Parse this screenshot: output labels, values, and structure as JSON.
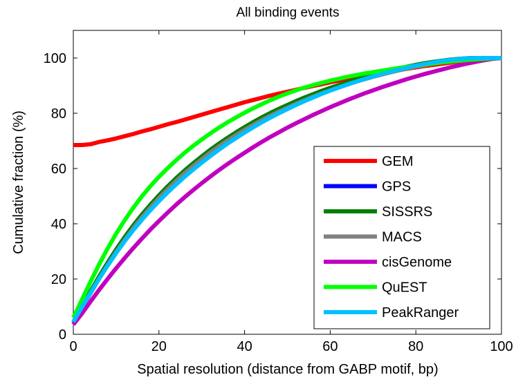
{
  "chart_data": {
    "type": "line",
    "title": "All binding events",
    "xlabel": "Spatial resolution (distance from GABP motif, bp)",
    "ylabel": "Cumulative fraction (%)",
    "xlim": [
      0,
      100
    ],
    "ylim": [
      0,
      110
    ],
    "xticks": [
      "0",
      "20",
      "40",
      "60",
      "80",
      "100"
    ],
    "yticks": [
      "0",
      "20",
      "40",
      "60",
      "80",
      "100"
    ],
    "grid": false,
    "legend_position": "bottom-right",
    "x": [
      0,
      2,
      4,
      6,
      8,
      10,
      12,
      14,
      16,
      18,
      20,
      22,
      24,
      26,
      28,
      30,
      32,
      34,
      36,
      38,
      40,
      42,
      44,
      46,
      48,
      50,
      52,
      54,
      56,
      58,
      60,
      62,
      64,
      66,
      68,
      70,
      72,
      74,
      76,
      78,
      80,
      82,
      84,
      86,
      88,
      90,
      92,
      94,
      96,
      98,
      100
    ],
    "series": [
      {
        "name": "GEM",
        "color": "#ff0000",
        "values": [
          68.5,
          68.5,
          68.8,
          69.6,
          70.2,
          70.9,
          71.7,
          72.5,
          73.4,
          74.2,
          75.1,
          76.0,
          76.8,
          77.7,
          78.6,
          79.5,
          80.4,
          81.3,
          82.2,
          83.1,
          84.0,
          84.8,
          85.6,
          86.4,
          87.1,
          87.8,
          88.5,
          89.2,
          89.9,
          90.5,
          91.2,
          91.8,
          92.4,
          93.0,
          93.6,
          94.1,
          94.6,
          95.1,
          95.6,
          96.1,
          96.6,
          97.1,
          97.5,
          97.9,
          98.3,
          98.7,
          99.0,
          99.3,
          99.6,
          99.8,
          100
        ]
      },
      {
        "name": "GPS",
        "color": "#0000ff",
        "values": [
          4.0,
          9.5,
          15.0,
          20.3,
          25.4,
          30.2,
          34.6,
          38.8,
          42.7,
          46.3,
          49.7,
          52.9,
          55.9,
          58.7,
          61.3,
          63.8,
          66.2,
          68.4,
          70.5,
          72.5,
          74.4,
          76.2,
          77.9,
          79.5,
          81.0,
          82.5,
          83.9,
          85.2,
          86.5,
          87.7,
          88.8,
          89.9,
          90.9,
          91.9,
          92.8,
          93.7,
          94.5,
          95.3,
          96.0,
          96.7,
          97.3,
          97.9,
          98.4,
          98.9,
          99.3,
          99.6,
          99.9,
          100,
          100,
          100,
          100
        ]
      },
      {
        "name": "SISSRS",
        "color": "#008000",
        "values": [
          4.5,
          10.0,
          15.5,
          20.8,
          25.9,
          30.7,
          35.2,
          39.4,
          43.3,
          46.9,
          50.3,
          53.5,
          56.5,
          59.3,
          61.9,
          64.4,
          66.8,
          69.0,
          71.1,
          73.1,
          75.0,
          76.8,
          78.5,
          80.1,
          81.6,
          83.0,
          84.4,
          85.7,
          86.9,
          88.1,
          89.2,
          90.2,
          91.2,
          92.2,
          93.1,
          93.9,
          94.7,
          95.5,
          96.2,
          96.9,
          97.5,
          98.1,
          98.6,
          99.0,
          99.4,
          99.7,
          99.9,
          100,
          100,
          100,
          100
        ]
      },
      {
        "name": "MACS",
        "color": "#808080",
        "values": [
          4.0,
          9.3,
          14.8,
          20.0,
          25.0,
          29.8,
          34.2,
          38.4,
          42.3,
          45.9,
          49.3,
          52.5,
          55.5,
          58.3,
          60.9,
          63.4,
          65.8,
          68.0,
          70.1,
          72.1,
          74.0,
          75.8,
          77.5,
          79.1,
          80.6,
          82.0,
          83.4,
          84.7,
          86.0,
          87.2,
          88.3,
          89.4,
          90.4,
          91.4,
          92.3,
          93.2,
          94.0,
          94.8,
          95.5,
          96.2,
          96.9,
          97.5,
          98.1,
          98.6,
          99.0,
          99.4,
          99.7,
          99.9,
          100,
          100,
          100
        ]
      },
      {
        "name": "cisGenome",
        "color": "#c000c0",
        "values": [
          3.5,
          7.5,
          11.8,
          16.0,
          20.0,
          23.9,
          27.6,
          31.2,
          34.6,
          37.9,
          41.0,
          44.0,
          46.9,
          49.6,
          52.2,
          54.7,
          57.1,
          59.4,
          61.6,
          63.7,
          65.7,
          67.7,
          69.6,
          71.4,
          73.1,
          74.8,
          76.4,
          77.9,
          79.4,
          80.8,
          82.2,
          83.5,
          84.8,
          86.0,
          87.2,
          88.3,
          89.4,
          90.4,
          91.4,
          92.4,
          93.3,
          94.2,
          95.0,
          95.8,
          96.6,
          97.3,
          98.0,
          98.6,
          99.2,
          99.7,
          100
        ]
      },
      {
        "name": "QuEST",
        "color": "#00ff00",
        "values": [
          6.0,
          12.5,
          19.0,
          25.2,
          31.0,
          36.4,
          41.3,
          45.8,
          49.9,
          53.6,
          57.0,
          60.1,
          63.0,
          65.7,
          68.2,
          70.5,
          72.7,
          74.8,
          76.7,
          78.5,
          80.2,
          81.8,
          83.3,
          84.7,
          86.0,
          87.2,
          88.3,
          89.3,
          90.2,
          91.0,
          91.8,
          92.5,
          93.2,
          93.8,
          94.4,
          94.9,
          95.4,
          95.9,
          96.4,
          96.8,
          97.2,
          97.6,
          98.0,
          98.4,
          98.7,
          99.0,
          99.3,
          99.5,
          99.7,
          99.9,
          100
        ]
      },
      {
        "name": "PeakRanger",
        "color": "#00c0ff",
        "values": [
          4.5,
          9.8,
          15.0,
          20.0,
          24.8,
          29.4,
          33.7,
          37.7,
          41.4,
          44.9,
          48.2,
          51.3,
          54.2,
          57.0,
          59.6,
          62.1,
          64.5,
          66.8,
          69.0,
          71.0,
          73.0,
          74.9,
          76.7,
          78.4,
          80.0,
          81.5,
          83.0,
          84.4,
          85.7,
          87.0,
          88.2,
          89.3,
          90.4,
          91.4,
          92.4,
          93.3,
          94.2,
          95.0,
          95.8,
          96.5,
          97.2,
          97.8,
          98.4,
          98.9,
          99.3,
          99.6,
          99.9,
          100,
          100,
          100,
          100
        ]
      }
    ]
  }
}
